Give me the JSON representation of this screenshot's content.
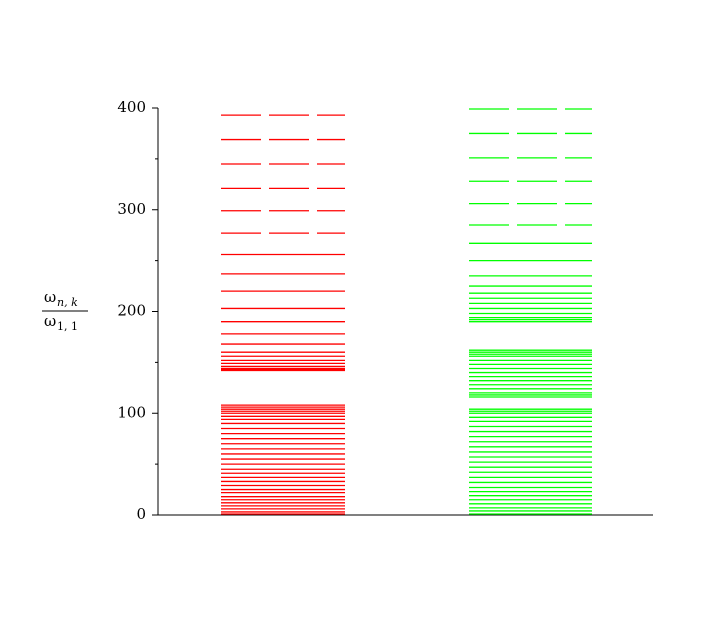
{
  "chart_data": {
    "type": "spectrum",
    "y_label": {
      "numerator": "ω",
      "numerator_sub": "n, k",
      "denominator": "ω",
      "denominator_sub": "1, 1"
    },
    "ylim": [
      0,
      400
    ],
    "yticks": [
      0,
      100,
      200,
      300,
      400
    ],
    "minor_yticks": [
      50,
      150,
      250,
      350
    ],
    "series": [
      {
        "color": "#ff0000",
        "dash_above": 270,
        "values": [
          1,
          3,
          6,
          9,
          12,
          15,
          18,
          22,
          25,
          29,
          33,
          37,
          41,
          45,
          50,
          55,
          60,
          65,
          70,
          75,
          80,
          85,
          90,
          94,
          97,
          100,
          102,
          104,
          106,
          108,
          142,
          143,
          144,
          146,
          149,
          152,
          156,
          160,
          168,
          178,
          190,
          203,
          220,
          237,
          256,
          277,
          299,
          321,
          345,
          369,
          393
        ]
      },
      {
        "color": "#00ff00",
        "dash_above": 280,
        "values": [
          1,
          4,
          7,
          11,
          15,
          19,
          23,
          27,
          32,
          37,
          42,
          47,
          52,
          57,
          62,
          67,
          72,
          77,
          82,
          87,
          92,
          96,
          100,
          102,
          104,
          116,
          118,
          120,
          124,
          128,
          132,
          136,
          140,
          144,
          148,
          152,
          156,
          158,
          160,
          162,
          190,
          192,
          194,
          198,
          203,
          208,
          213,
          218,
          225,
          235,
          250,
          267,
          285,
          306,
          328,
          351,
          375,
          399
        ]
      }
    ]
  }
}
